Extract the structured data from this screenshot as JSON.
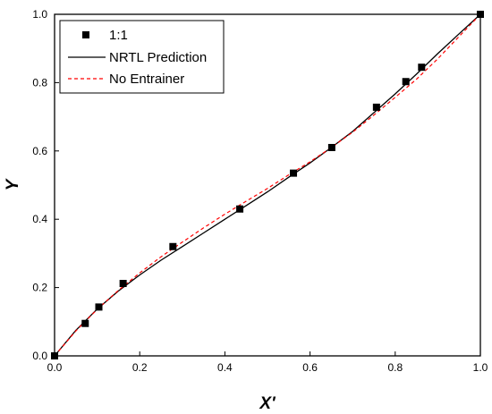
{
  "chart_data": {
    "type": "scatter",
    "title": "",
    "xlabel": "X'",
    "ylabel": "Y",
    "xlim": [
      0,
      1
    ],
    "ylim": [
      0,
      1
    ],
    "x_ticks": [
      "0.0",
      "0.2",
      "0.4",
      "0.6",
      "0.8",
      "1.0"
    ],
    "y_ticks": [
      "0.0",
      "0.2",
      "0.4",
      "0.6",
      "0.8",
      "1.0"
    ],
    "grid": false,
    "legend_position": "top-left",
    "series": [
      {
        "name": "1:1",
        "kind": "markers",
        "marker": "square",
        "color": "#000000",
        "x": [
          0.0,
          0.072,
          0.104,
          0.161,
          0.278,
          0.435,
          0.561,
          0.651,
          0.756,
          0.825,
          0.862,
          1.0
        ],
        "y": [
          0.0,
          0.095,
          0.143,
          0.212,
          0.32,
          0.43,
          0.535,
          0.61,
          0.728,
          0.803,
          0.845,
          1.0
        ]
      },
      {
        "name": "NRTL Prediction",
        "kind": "line",
        "style": "solid",
        "color": "#000000",
        "x": [
          0.0,
          0.05,
          0.1,
          0.15,
          0.2,
          0.25,
          0.3,
          0.35,
          0.4,
          0.45,
          0.5,
          0.55,
          0.6,
          0.65,
          0.7,
          0.75,
          0.8,
          0.85,
          0.9,
          0.95,
          1.0
        ],
        "y": [
          0.0,
          0.075,
          0.137,
          0.19,
          0.237,
          0.28,
          0.32,
          0.36,
          0.4,
          0.44,
          0.48,
          0.523,
          0.565,
          0.61,
          0.657,
          0.712,
          0.767,
          0.825,
          0.885,
          0.943,
          1.0
        ]
      },
      {
        "name": "No Entrainer",
        "kind": "line",
        "style": "dashed",
        "color": "#ff0000",
        "x": [
          0.0,
          0.05,
          0.1,
          0.15,
          0.2,
          0.25,
          0.3,
          0.35,
          0.4,
          0.45,
          0.5,
          0.55,
          0.6,
          0.65,
          0.7,
          0.75,
          0.8,
          0.85,
          0.9,
          0.95,
          1.0
        ],
        "y": [
          0.0,
          0.073,
          0.136,
          0.192,
          0.243,
          0.29,
          0.333,
          0.375,
          0.415,
          0.453,
          0.49,
          0.53,
          0.568,
          0.61,
          0.655,
          0.705,
          0.757,
          0.81,
          0.87,
          0.935,
          1.0
        ]
      }
    ]
  }
}
